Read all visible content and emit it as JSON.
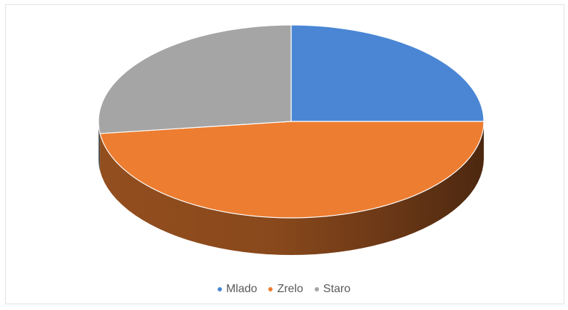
{
  "chart_data": {
    "type": "pie",
    "style": "3d",
    "categories": [
      "Mlado",
      "Zrelo",
      "Staro"
    ],
    "values": [
      25,
      48,
      27
    ],
    "colors": [
      "#4a86d4",
      "#ed7d31",
      "#a5a5a5"
    ],
    "title": "",
    "legend_position": "bottom",
    "start": "12 o'clock, clockwise"
  },
  "legend": {
    "items": [
      {
        "label": "Mlado",
        "color": "#4a86d4"
      },
      {
        "label": "Zrelo",
        "color": "#ed7d31"
      },
      {
        "label": "Staro",
        "color": "#a5a5a5"
      }
    ]
  }
}
